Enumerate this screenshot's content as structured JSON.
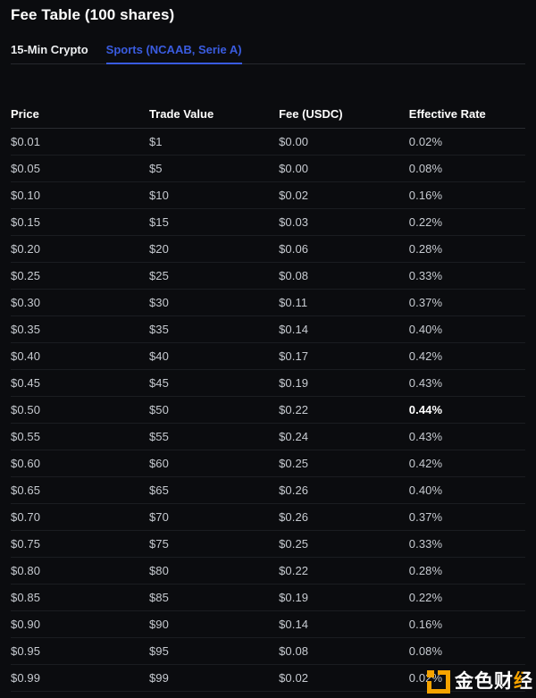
{
  "header": {
    "title": "Fee Table (100 shares)"
  },
  "tabs": [
    {
      "label": "15-Min Crypto",
      "active": false
    },
    {
      "label": "Sports (NCAAB, Serie A)",
      "active": true
    }
  ],
  "colors": {
    "background": "#0b0c0f",
    "accent_blue": "#3a5ce0",
    "row_text": "#c7cbd1",
    "highlight_text": "#ffffff",
    "watermark_orange": "#f5a300"
  },
  "table": {
    "columns": [
      "Price",
      "Trade Value",
      "Fee (USDC)",
      "Effective Rate"
    ],
    "rows": [
      {
        "price": "$0.01",
        "trade_value": "$1",
        "fee": "$0.00",
        "rate": "0.02%",
        "highlight": false
      },
      {
        "price": "$0.05",
        "trade_value": "$5",
        "fee": "$0.00",
        "rate": "0.08%",
        "highlight": false
      },
      {
        "price": "$0.10",
        "trade_value": "$10",
        "fee": "$0.02",
        "rate": "0.16%",
        "highlight": false
      },
      {
        "price": "$0.15",
        "trade_value": "$15",
        "fee": "$0.03",
        "rate": "0.22%",
        "highlight": false
      },
      {
        "price": "$0.20",
        "trade_value": "$20",
        "fee": "$0.06",
        "rate": "0.28%",
        "highlight": false
      },
      {
        "price": "$0.25",
        "trade_value": "$25",
        "fee": "$0.08",
        "rate": "0.33%",
        "highlight": false
      },
      {
        "price": "$0.30",
        "trade_value": "$30",
        "fee": "$0.11",
        "rate": "0.37%",
        "highlight": false
      },
      {
        "price": "$0.35",
        "trade_value": "$35",
        "fee": "$0.14",
        "rate": "0.40%",
        "highlight": false
      },
      {
        "price": "$0.40",
        "trade_value": "$40",
        "fee": "$0.17",
        "rate": "0.42%",
        "highlight": false
      },
      {
        "price": "$0.45",
        "trade_value": "$45",
        "fee": "$0.19",
        "rate": "0.43%",
        "highlight": false
      },
      {
        "price": "$0.50",
        "trade_value": "$50",
        "fee": "$0.22",
        "rate": "0.44%",
        "highlight": true
      },
      {
        "price": "$0.55",
        "trade_value": "$55",
        "fee": "$0.24",
        "rate": "0.43%",
        "highlight": false
      },
      {
        "price": "$0.60",
        "trade_value": "$60",
        "fee": "$0.25",
        "rate": "0.42%",
        "highlight": false
      },
      {
        "price": "$0.65",
        "trade_value": "$65",
        "fee": "$0.26",
        "rate": "0.40%",
        "highlight": false
      },
      {
        "price": "$0.70",
        "trade_value": "$70",
        "fee": "$0.26",
        "rate": "0.37%",
        "highlight": false
      },
      {
        "price": "$0.75",
        "trade_value": "$75",
        "fee": "$0.25",
        "rate": "0.33%",
        "highlight": false
      },
      {
        "price": "$0.80",
        "trade_value": "$80",
        "fee": "$0.22",
        "rate": "0.28%",
        "highlight": false
      },
      {
        "price": "$0.85",
        "trade_value": "$85",
        "fee": "$0.19",
        "rate": "0.22%",
        "highlight": false
      },
      {
        "price": "$0.90",
        "trade_value": "$90",
        "fee": "$0.14",
        "rate": "0.16%",
        "highlight": false
      },
      {
        "price": "$0.95",
        "trade_value": "$95",
        "fee": "$0.08",
        "rate": "0.08%",
        "highlight": false
      },
      {
        "price": "$0.99",
        "trade_value": "$99",
        "fee": "$0.02",
        "rate": "0.02%",
        "highlight": false
      }
    ]
  },
  "watermark": {
    "text": "金色财经",
    "text_main": "金色财",
    "text_accent": "经"
  }
}
